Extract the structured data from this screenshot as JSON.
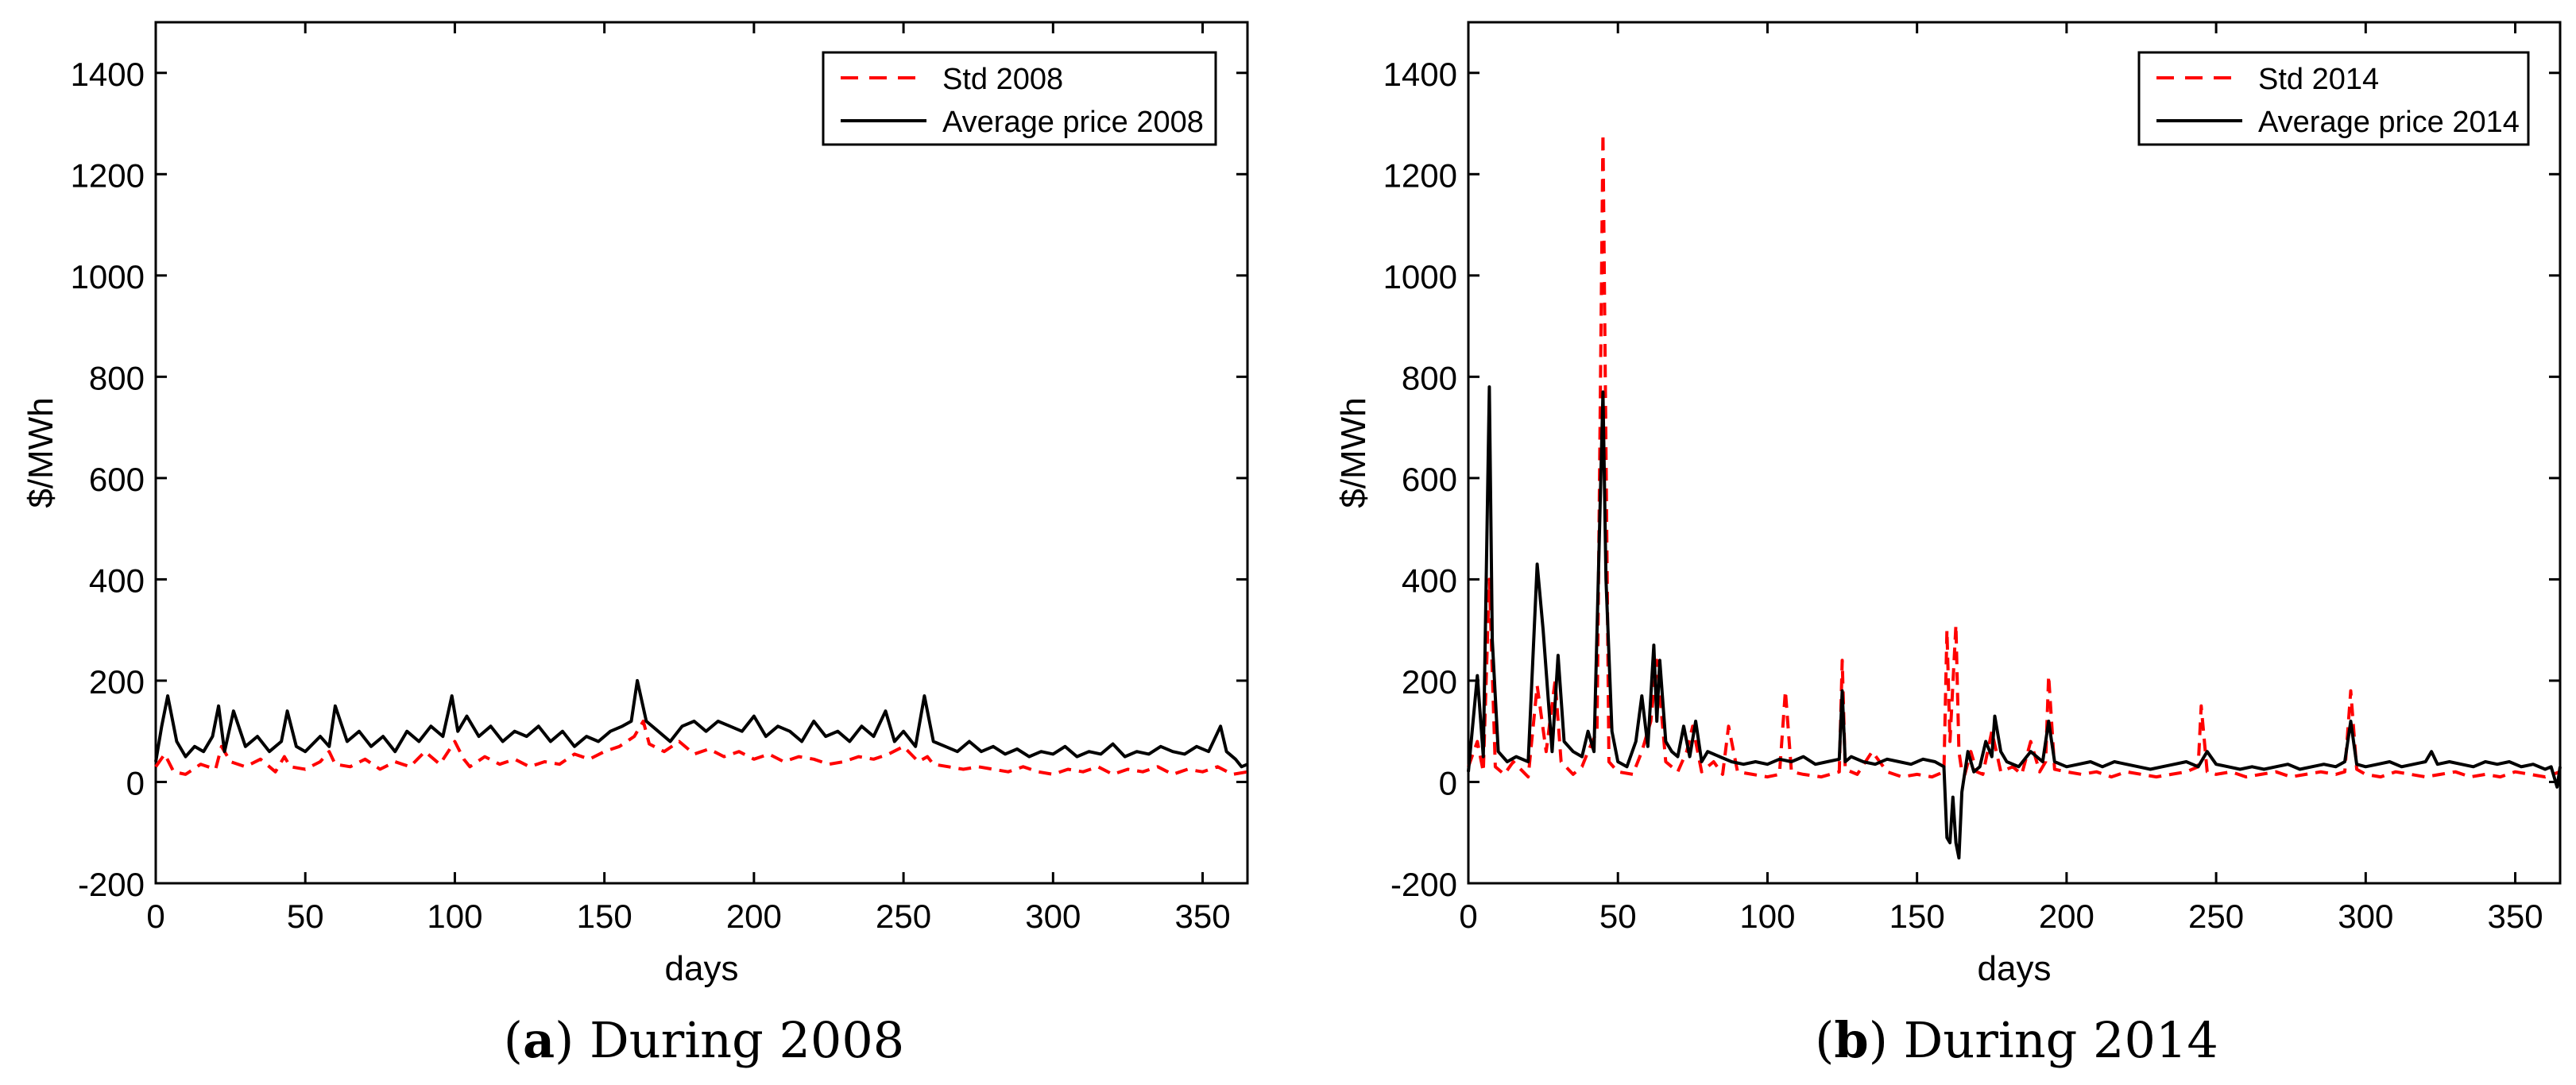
{
  "colors": {
    "std": "#ff0000",
    "avg": "#000000",
    "axis": "#000000"
  },
  "captions": {
    "a": {
      "letter": "a",
      "text": " During 2008"
    },
    "b": {
      "letter": "b",
      "text": " During 2014"
    }
  },
  "chart_data": [
    {
      "type": "line",
      "panel": "a",
      "xlabel": "days",
      "ylabel": "$/MWh",
      "xlim": [
        0,
        365
      ],
      "ylim": [
        -200,
        1500
      ],
      "xticks": [
        0,
        50,
        100,
        150,
        200,
        250,
        300,
        350
      ],
      "yticks": [
        -200,
        0,
        200,
        400,
        600,
        800,
        1000,
        1200,
        1400
      ],
      "legend_position": "top-right",
      "series": [
        {
          "name": "Std 2008",
          "style": "dashed",
          "color": "#ff0000",
          "x": [
            0,
            3,
            6,
            10,
            15,
            20,
            22,
            25,
            30,
            35,
            40,
            43,
            45,
            50,
            55,
            58,
            60,
            65,
            70,
            75,
            80,
            85,
            90,
            95,
            100,
            103,
            105,
            110,
            115,
            120,
            125,
            130,
            135,
            140,
            145,
            150,
            155,
            160,
            163,
            165,
            170,
            175,
            180,
            185,
            190,
            195,
            200,
            205,
            210,
            215,
            220,
            225,
            230,
            235,
            240,
            245,
            250,
            255,
            258,
            260,
            265,
            270,
            275,
            280,
            285,
            290,
            295,
            300,
            305,
            310,
            315,
            320,
            325,
            330,
            335,
            340,
            345,
            350,
            355,
            360,
            365
          ],
          "values": [
            30,
            55,
            20,
            15,
            35,
            25,
            70,
            40,
            30,
            45,
            20,
            50,
            30,
            25,
            40,
            60,
            35,
            30,
            45,
            25,
            40,
            30,
            60,
            35,
            80,
            45,
            30,
            50,
            35,
            45,
            30,
            40,
            35,
            55,
            45,
            60,
            70,
            90,
            120,
            75,
            60,
            80,
            55,
            65,
            50,
            60,
            45,
            55,
            40,
            50,
            45,
            35,
            40,
            50,
            45,
            55,
            70,
            40,
            50,
            35,
            30,
            25,
            30,
            25,
            20,
            30,
            20,
            15,
            25,
            20,
            30,
            15,
            25,
            20,
            30,
            15,
            25,
            20,
            30,
            15,
            20
          ]
        },
        {
          "name": "Average price 2008",
          "style": "solid",
          "color": "#000000",
          "x": [
            0,
            2,
            4,
            7,
            10,
            13,
            16,
            19,
            21,
            23,
            26,
            30,
            34,
            38,
            42,
            44,
            47,
            50,
            55,
            58,
            60,
            64,
            68,
            72,
            76,
            80,
            84,
            88,
            92,
            96,
            99,
            101,
            104,
            108,
            112,
            116,
            120,
            124,
            128,
            132,
            136,
            140,
            144,
            148,
            152,
            156,
            159,
            161,
            164,
            168,
            172,
            176,
            180,
            184,
            188,
            192,
            196,
            200,
            204,
            208,
            212,
            216,
            220,
            224,
            228,
            232,
            236,
            240,
            244,
            247,
            250,
            254,
            257,
            260,
            264,
            268,
            272,
            276,
            280,
            284,
            288,
            292,
            296,
            300,
            304,
            308,
            312,
            316,
            320,
            324,
            328,
            332,
            336,
            340,
            344,
            348,
            352,
            356,
            358,
            361,
            363,
            365
          ],
          "values": [
            40,
            110,
            170,
            80,
            50,
            70,
            60,
            90,
            150,
            60,
            140,
            70,
            90,
            60,
            80,
            140,
            70,
            60,
            90,
            70,
            150,
            80,
            100,
            70,
            90,
            60,
            100,
            80,
            110,
            90,
            170,
            100,
            130,
            90,
            110,
            80,
            100,
            90,
            110,
            80,
            100,
            70,
            90,
            80,
            100,
            110,
            120,
            200,
            120,
            100,
            80,
            110,
            120,
            100,
            120,
            110,
            100,
            130,
            90,
            110,
            100,
            80,
            120,
            90,
            100,
            80,
            110,
            90,
            140,
            80,
            100,
            70,
            170,
            80,
            70,
            60,
            80,
            60,
            70,
            55,
            65,
            50,
            60,
            55,
            70,
            50,
            60,
            55,
            75,
            50,
            60,
            55,
            70,
            60,
            55,
            70,
            60,
            110,
            60,
            45,
            30,
            35
          ]
        }
      ]
    },
    {
      "type": "line",
      "panel": "b",
      "xlabel": "days",
      "ylabel": "$/MWh",
      "xlim": [
        0,
        365
      ],
      "ylim": [
        -200,
        1500
      ],
      "xticks": [
        0,
        50,
        100,
        150,
        200,
        250,
        300,
        350
      ],
      "yticks": [
        -200,
        0,
        200,
        400,
        600,
        800,
        1000,
        1200,
        1400
      ],
      "legend_position": "top-right",
      "series": [
        {
          "name": "Std 2014",
          "style": "dashed",
          "color": "#ff0000",
          "x": [
            0,
            3,
            5,
            7,
            9,
            12,
            15,
            20,
            23,
            26,
            29,
            31,
            35,
            38,
            40,
            43,
            45,
            47,
            50,
            55,
            58,
            61,
            63,
            66,
            70,
            73,
            75,
            78,
            82,
            85,
            87,
            90,
            95,
            100,
            104,
            106,
            108,
            112,
            118,
            124,
            125,
            126,
            130,
            135,
            140,
            145,
            150,
            155,
            159,
            160,
            161,
            163,
            164,
            165,
            166,
            168,
            170,
            172,
            175,
            178,
            182,
            185,
            188,
            191,
            193,
            194,
            196,
            200,
            205,
            210,
            215,
            220,
            225,
            230,
            235,
            240,
            244,
            245,
            247,
            250,
            255,
            260,
            265,
            270,
            275,
            280,
            285,
            290,
            293,
            295,
            297,
            300,
            305,
            310,
            315,
            320,
            325,
            330,
            335,
            340,
            345,
            350,
            355,
            360,
            365
          ],
          "values": [
            30,
            80,
            20,
            400,
            30,
            15,
            40,
            10,
            190,
            60,
            200,
            40,
            15,
            30,
            60,
            100,
            1280,
            40,
            20,
            15,
            60,
            120,
            240,
            40,
            20,
            60,
            110,
            20,
            40,
            15,
            110,
            20,
            15,
            10,
            15,
            180,
            20,
            15,
            10,
            20,
            240,
            25,
            15,
            60,
            20,
            10,
            15,
            10,
            20,
            300,
            80,
            310,
            60,
            20,
            15,
            60,
            20,
            15,
            100,
            20,
            30,
            15,
            80,
            20,
            40,
            210,
            25,
            20,
            15,
            20,
            10,
            20,
            15,
            10,
            15,
            20,
            30,
            150,
            20,
            15,
            20,
            10,
            15,
            20,
            10,
            15,
            20,
            15,
            20,
            180,
            25,
            15,
            10,
            20,
            15,
            10,
            15,
            20,
            10,
            15,
            10,
            20,
            15,
            10,
            20
          ]
        },
        {
          "name": "Average price 2014",
          "style": "solid",
          "color": "#000000",
          "x": [
            0,
            3,
            5,
            7,
            8,
            10,
            13,
            16,
            20,
            23,
            25,
            28,
            30,
            32,
            35,
            38,
            40,
            42,
            45,
            46,
            48,
            50,
            53,
            56,
            58,
            60,
            62,
            63,
            64,
            66,
            68,
            70,
            72,
            74,
            76,
            78,
            80,
            84,
            88,
            92,
            96,
            100,
            104,
            108,
            112,
            116,
            120,
            124,
            125,
            126,
            128,
            132,
            136,
            140,
            144,
            148,
            152,
            156,
            159,
            160,
            161,
            162,
            163,
            164,
            165,
            167,
            169,
            171,
            173,
            175,
            176,
            178,
            180,
            184,
            188,
            192,
            194,
            196,
            200,
            204,
            208,
            212,
            216,
            220,
            224,
            228,
            232,
            236,
            240,
            244,
            247,
            250,
            254,
            258,
            262,
            266,
            270,
            274,
            278,
            282,
            286,
            290,
            293,
            295,
            297,
            300,
            304,
            308,
            312,
            316,
            320,
            322,
            324,
            328,
            332,
            336,
            340,
            344,
            348,
            352,
            356,
            360,
            362,
            364,
            365
          ],
          "values": [
            20,
            210,
            50,
            780,
            280,
            60,
            40,
            50,
            40,
            430,
            300,
            60,
            250,
            80,
            60,
            50,
            100,
            60,
            770,
            400,
            100,
            40,
            30,
            80,
            170,
            70,
            270,
            120,
            240,
            80,
            60,
            50,
            110,
            50,
            120,
            40,
            60,
            50,
            40,
            35,
            40,
            35,
            45,
            40,
            50,
            35,
            40,
            45,
            180,
            40,
            50,
            40,
            35,
            45,
            40,
            35,
            45,
            40,
            30,
            -110,
            -120,
            -30,
            -120,
            -150,
            -20,
            60,
            20,
            30,
            80,
            50,
            130,
            60,
            40,
            30,
            60,
            40,
            120,
            40,
            30,
            35,
            40,
            30,
            40,
            35,
            30,
            25,
            30,
            35,
            40,
            30,
            60,
            35,
            30,
            25,
            30,
            25,
            30,
            35,
            25,
            30,
            35,
            30,
            40,
            120,
            35,
            30,
            35,
            40,
            30,
            35,
            40,
            60,
            35,
            40,
            35,
            30,
            40,
            35,
            40,
            30,
            35,
            25,
            30,
            -10,
            30
          ]
        }
      ]
    }
  ]
}
